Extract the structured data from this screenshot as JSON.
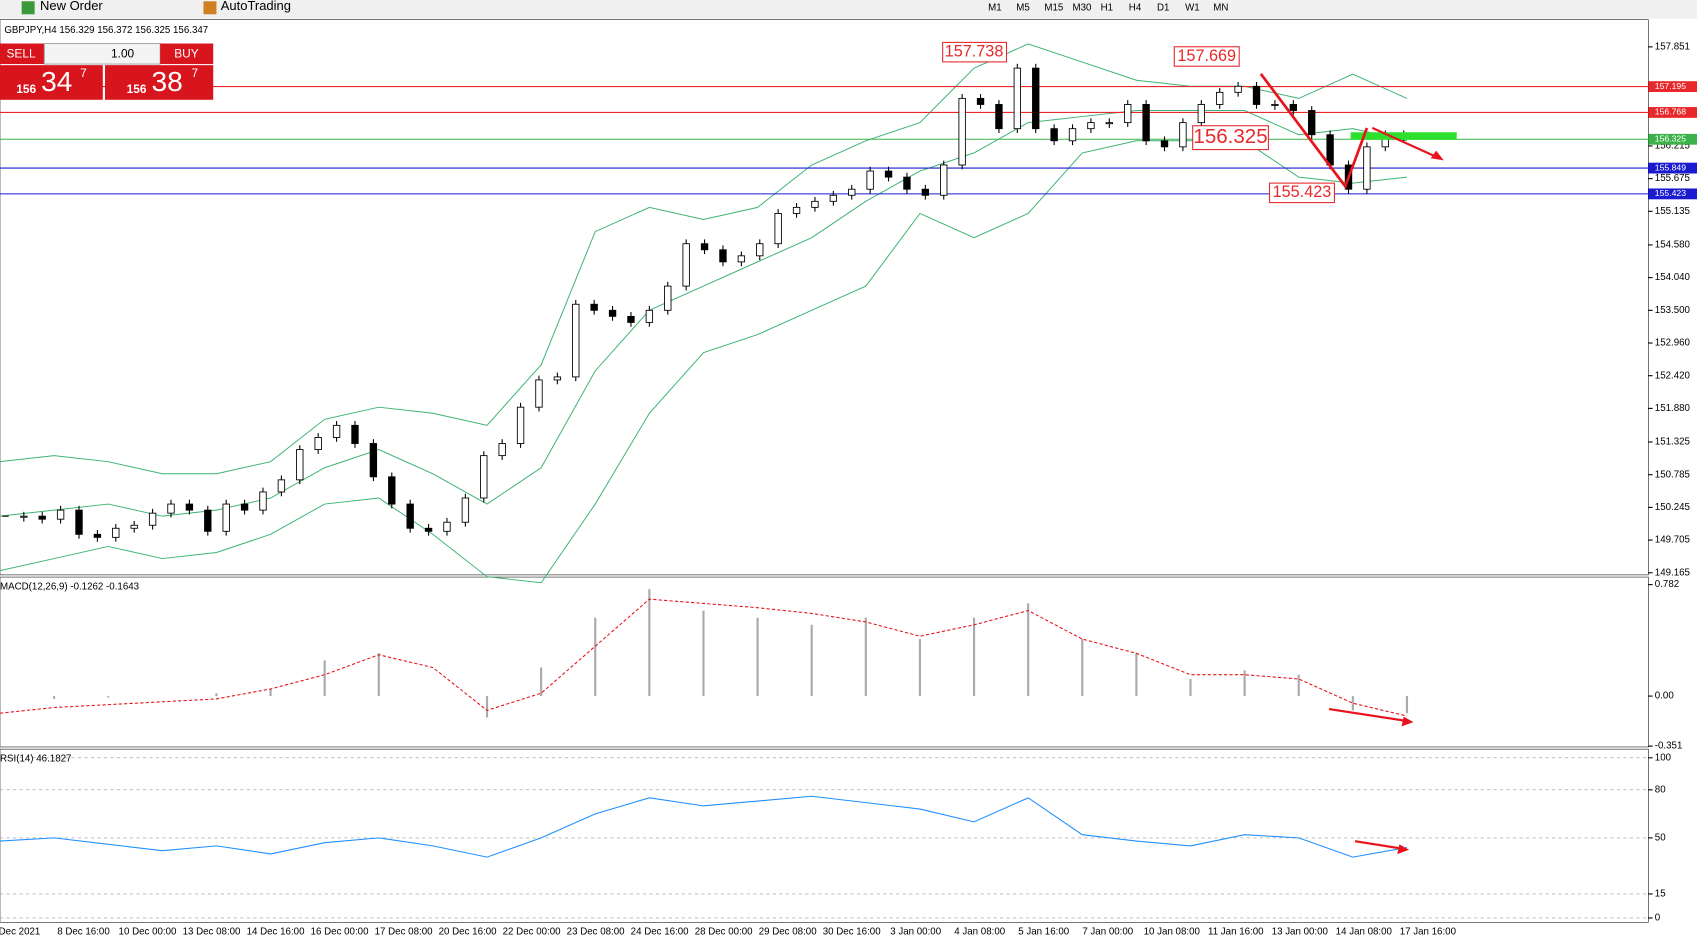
{
  "toolbar": {
    "new_order": "New Order",
    "auto_trading": "AutoTrading",
    "timeframes": [
      "M1",
      "M5",
      "M15",
      "M30",
      "H1",
      "H4",
      "D1",
      "W1",
      "MN"
    ]
  },
  "trade_panel": {
    "sell": "SELL",
    "buy": "BUY",
    "lots": "1.00",
    "sell_big": "156",
    "sell_main": "34",
    "sell_sup": "7",
    "buy_big": "156",
    "buy_main": "38",
    "buy_sup": "7"
  },
  "chart": {
    "type": "candlestick",
    "label": "GBPJPY,H4 156.329 156.372 156.325 156.347",
    "ylim": [
      149.13,
      158.3
    ],
    "yticks": [
      157.851,
      156.215,
      155.675,
      155.135,
      {
        "value": 154.58,
        "label": "154.580"
      },
      {
        "value": 154.04,
        "label": "154.040"
      },
      {
        "value": 153.5,
        "label": "153.500"
      },
      {
        "value": 152.96,
        "label": "152.960"
      },
      {
        "value": 152.42,
        "label": "152.420"
      },
      {
        "value": 151.88,
        "label": "151.880"
      },
      151.325,
      150.785,
      150.245,
      149.705,
      149.165
    ],
    "closes": [
      150.1,
      150.1,
      150.05,
      150.2,
      149.8,
      149.75,
      149.9,
      149.95,
      150.15,
      150.3,
      150.2,
      149.85,
      150.3,
      150.2,
      150.5,
      150.7,
      151.2,
      151.4,
      151.6,
      151.3,
      150.75,
      150.3,
      149.9,
      149.85,
      150.0,
      150.4,
      151.1,
      151.3,
      151.9,
      152.35,
      152.4,
      153.6,
      153.5,
      153.4,
      153.3,
      153.5,
      153.9,
      154.6,
      154.5,
      154.3,
      154.4,
      154.6,
      155.1,
      155.2,
      155.3,
      155.4,
      155.5,
      155.8,
      155.7,
      155.5,
      155.4,
      155.9,
      157.0,
      156.9,
      156.5,
      157.5,
      156.5,
      156.3,
      156.5,
      156.6,
      156.6,
      156.9,
      156.3,
      156.2,
      156.6,
      156.9,
      157.1,
      157.2,
      156.9,
      156.9,
      156.8,
      156.4,
      155.9,
      155.5,
      156.2,
      156.4,
      156.35
    ],
    "bands": [
      {
        "name": "upper",
        "color": "#3cb371",
        "values": [
          151.0,
          151.1,
          151.0,
          150.8,
          150.8,
          151.0,
          151.7,
          151.9,
          151.8,
          151.6,
          152.6,
          154.8,
          155.2,
          155.0,
          155.2,
          155.9,
          156.3,
          156.6,
          157.5,
          157.9,
          157.6,
          157.3,
          157.2,
          157.2,
          157.0,
          157.4,
          157.0
        ]
      },
      {
        "name": "middle",
        "color": "#3cb371",
        "values": [
          150.1,
          150.2,
          150.3,
          150.1,
          150.2,
          150.4,
          150.9,
          151.2,
          150.8,
          150.3,
          150.9,
          152.5,
          153.5,
          153.9,
          154.3,
          154.7,
          155.3,
          155.8,
          156.1,
          156.6,
          156.7,
          156.8,
          156.8,
          156.8,
          156.4,
          156.5,
          156.3
        ]
      },
      {
        "name": "lower",
        "color": "#3cb371",
        "values": [
          149.2,
          149.4,
          149.6,
          149.4,
          149.5,
          149.8,
          150.3,
          150.4,
          149.8,
          149.1,
          149.0,
          150.3,
          151.8,
          152.8,
          153.1,
          153.5,
          153.9,
          155.1,
          154.7,
          155.1,
          156.1,
          156.3,
          156.3,
          156.3,
          155.7,
          155.6,
          155.7
        ]
      }
    ],
    "levels": [
      {
        "value": 157.195,
        "color": "#e8282b"
      },
      {
        "value": 156.768,
        "color": "#e8282b"
      },
      {
        "value": 156.325,
        "color": "#3cb34a"
      },
      {
        "value": 155.849,
        "color": "#1a1ad0"
      },
      {
        "value": 155.423,
        "color": "#1a1ad0"
      }
    ],
    "annotations": [
      "157.738",
      "157.669",
      "156.325",
      "155.423"
    ]
  },
  "macd": {
    "label": "MACD(12,26,9) -0.1262 -0.1643",
    "ylim": [
      -0.357,
      0.835
    ],
    "yticks": [
      0.782,
      {
        "value": 0,
        "label": "0.00"
      },
      -0.351
    ],
    "histogram": [
      0.0,
      -0.02,
      -0.01,
      0.0,
      0.02,
      0.05,
      0.25,
      0.3,
      0.0,
      -0.15,
      0.2,
      0.55,
      0.75,
      0.6,
      0.55,
      0.5,
      0.55,
      0.4,
      0.55,
      0.65,
      0.4,
      0.3,
      0.12,
      0.18,
      0.15,
      -0.1,
      -0.12
    ],
    "signal": [
      -0.12,
      -0.08,
      -0.06,
      -0.04,
      -0.02,
      0.05,
      0.15,
      0.29,
      0.2,
      -0.1,
      0.02,
      0.35,
      0.68,
      0.65,
      0.62,
      0.58,
      0.52,
      0.42,
      0.5,
      0.6,
      0.4,
      0.3,
      0.15,
      0.15,
      0.12,
      -0.05,
      -0.14
    ]
  },
  "rsi": {
    "label": "RSI(14) 46.1827",
    "ylim": [
      -2.7,
      105.4
    ],
    "yticks": [
      100,
      80,
      50,
      15,
      0
    ],
    "values": [
      48,
      50,
      46,
      42,
      45,
      40,
      47,
      50,
      45,
      38,
      50,
      65,
      75,
      70,
      73,
      76,
      72,
      68,
      60,
      75,
      52,
      48,
      45,
      52,
      50,
      38,
      44
    ]
  },
  "time_labels": [
    "Dec 2021",
    "8 Dec 16:00",
    "10 Dec 00:00",
    "13 Dec 08:00",
    "14 Dec 16:00",
    "16 Dec 00:00",
    "17 Dec 08:00",
    "20 Dec 16:00",
    "22 Dec 00:00",
    "23 Dec 08:00",
    "24 Dec 16:00",
    "28 Dec 00:00",
    "29 Dec 08:00",
    "30 Dec 16:00",
    "3 Jan 00:00",
    "4 Jan 08:00",
    "5 Jan 16:00",
    "7 Jan 00:00",
    "10 Jan 08:00",
    "11 Jan 16:00",
    "13 Jan 00:00",
    "14 Jan 08:00",
    "17 Jan 16:00"
  ]
}
